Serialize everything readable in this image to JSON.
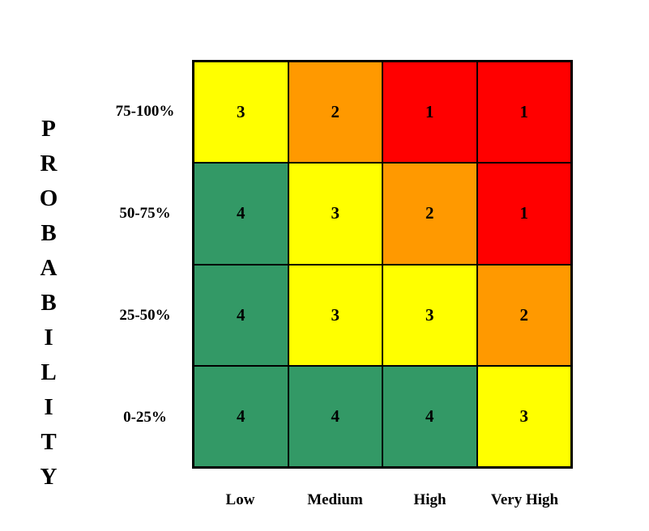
{
  "axis_title_letters": [
    "P",
    "R",
    "O",
    "B",
    "A",
    "B",
    "I",
    "L",
    "I",
    "T",
    "Y"
  ],
  "row_labels": [
    "75-100%",
    "50-75%",
    "25-50%",
    "0-25%"
  ],
  "column_labels": [
    "Low",
    "Medium",
    "High",
    "Very High"
  ],
  "colors": {
    "1": "#ff0000",
    "2": "#ff9900",
    "3": "#ffff00",
    "4": "#339966"
  },
  "matrix": [
    [
      "3",
      "2",
      "1",
      "1"
    ],
    [
      "4",
      "3",
      "2",
      "1"
    ],
    [
      "4",
      "3",
      "3",
      "2"
    ],
    [
      "4",
      "4",
      "4",
      "3"
    ]
  ]
}
